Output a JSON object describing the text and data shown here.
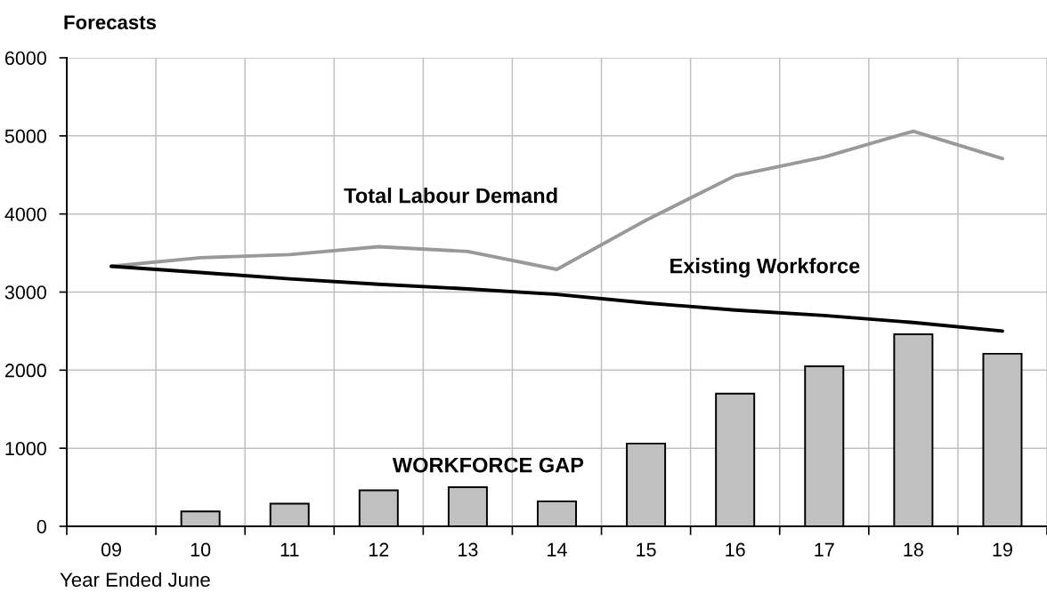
{
  "chart_data": {
    "type": "line",
    "title": "Forecasts",
    "xlabel": "Year Ended June",
    "categories": [
      "09",
      "10",
      "11",
      "12",
      "13",
      "14",
      "15",
      "16",
      "17",
      "18",
      "19"
    ],
    "series": [
      {
        "name": "Total Labour Demand",
        "color": "#999999",
        "values": [
          3330,
          3440,
          3480,
          3580,
          3520,
          3290,
          3920,
          4490,
          4730,
          5060,
          4710
        ]
      },
      {
        "name": "Existing Workforce",
        "color": "#000000",
        "values": [
          3330,
          3250,
          3170,
          3100,
          3040,
          2970,
          2860,
          2770,
          2700,
          2610,
          2500
        ]
      },
      {
        "name": "WORKFORCE GAP",
        "type": "bar",
        "color": "#c0c0c0",
        "values": [
          null,
          190,
          290,
          460,
          500,
          320,
          1060,
          1700,
          2050,
          2460,
          2210
        ]
      }
    ],
    "ylim": [
      0,
      6000
    ],
    "yticks": [
      0,
      1000,
      2000,
      3000,
      4000,
      5000,
      6000
    ],
    "grid": true
  }
}
